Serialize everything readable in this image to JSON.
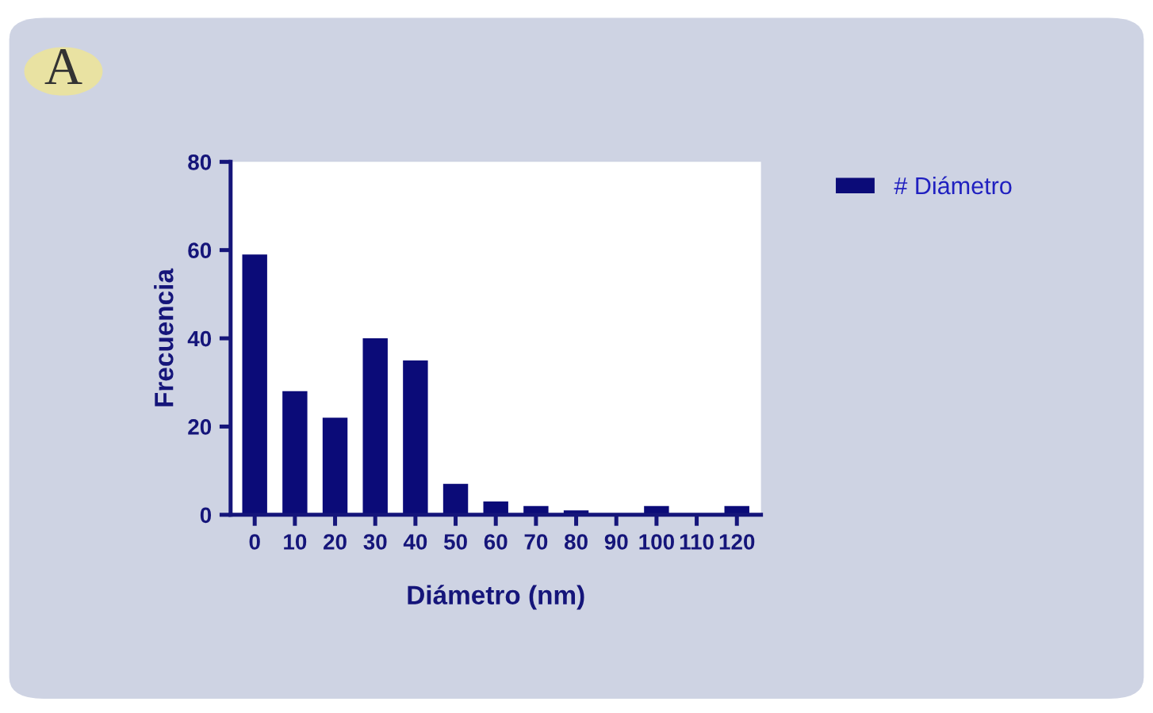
{
  "chart_data": {
    "type": "bar",
    "xlabel": "Diámetro (nm)",
    "ylabel": "Frecuencia",
    "annotations": [
      "A"
    ],
    "categories": [
      "0",
      "10",
      "20",
      "30",
      "40",
      "50",
      "60",
      "70",
      "80",
      "90",
      "100",
      "110",
      "120"
    ],
    "series": [
      {
        "name": "# Diámetro",
        "color": "#0b0b78",
        "values": [
          59,
          28,
          22,
          40,
          35,
          7,
          3,
          2,
          1,
          0,
          2,
          0,
          2
        ]
      }
    ],
    "ylim": [
      0,
      80
    ],
    "yticks": [
      0,
      20,
      40,
      60,
      80
    ],
    "grid": false,
    "legend": "top right"
  }
}
